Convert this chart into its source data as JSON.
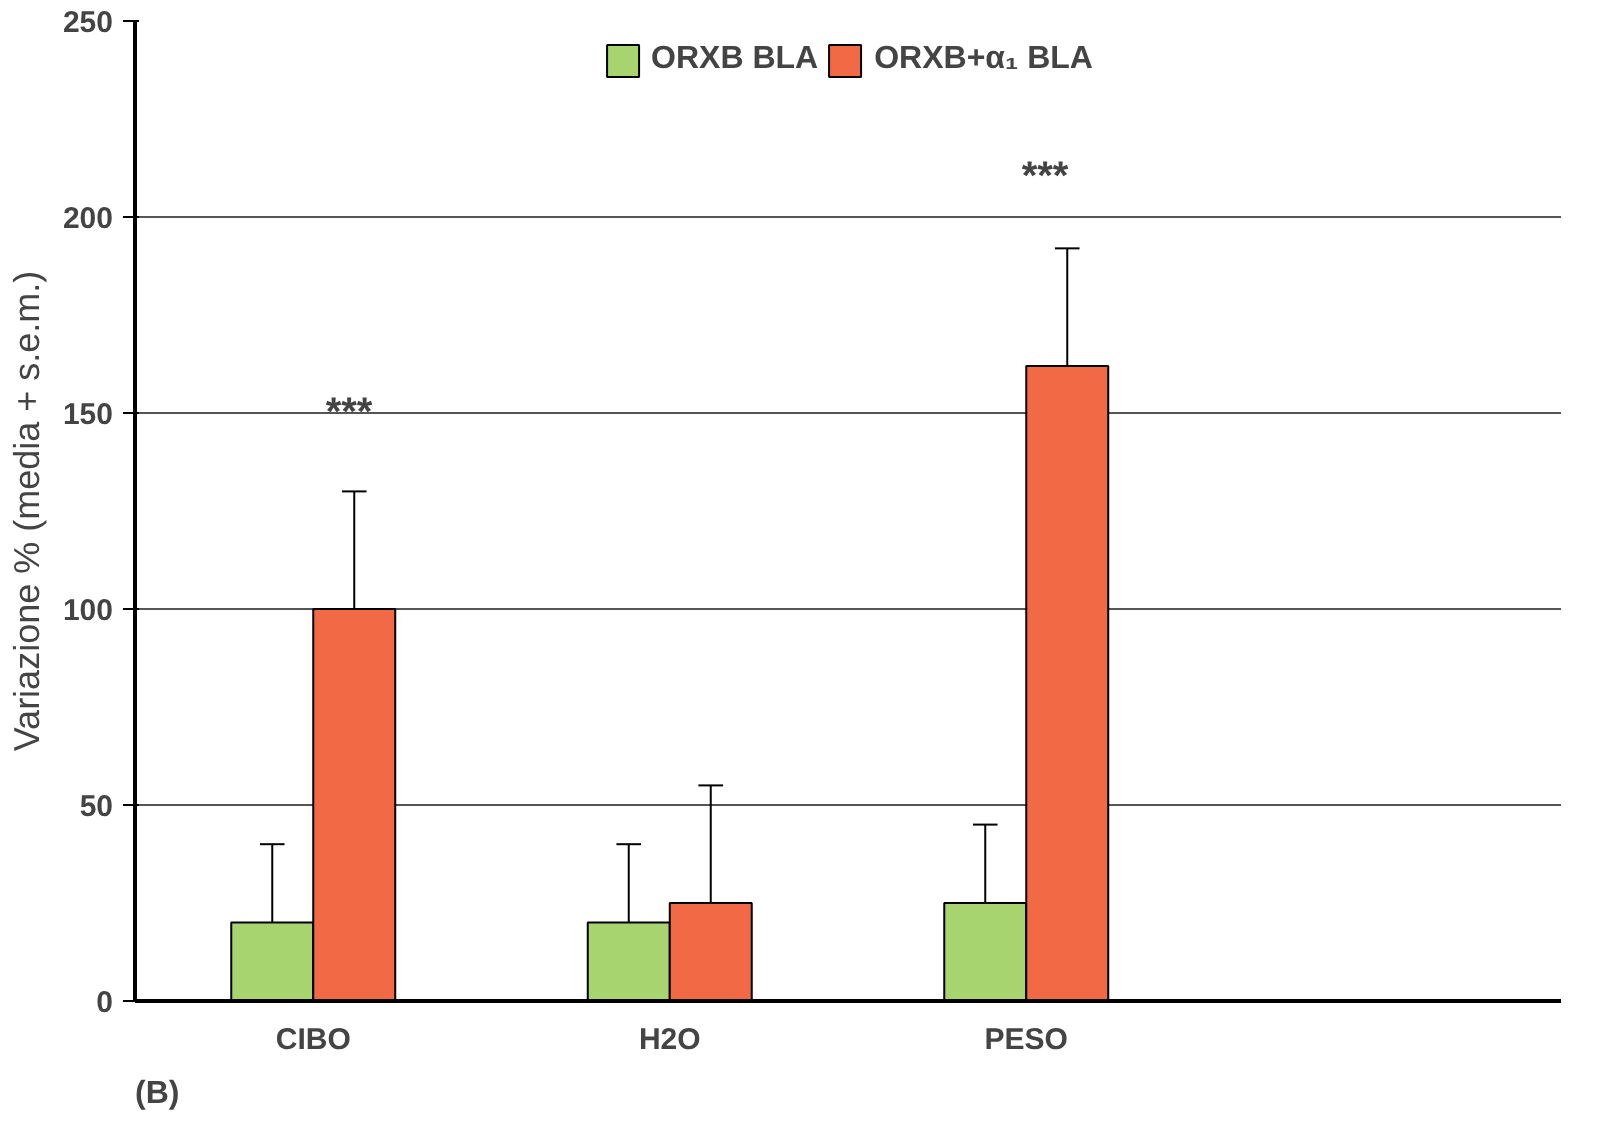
{
  "chart_data": {
    "type": "bar",
    "ylabel": "Variazione % (media + s.e.m.)",
    "categories": [
      "CIBO",
      "H2O",
      "PESO",
      null
    ],
    "series": [
      {
        "name": "ORXB BLA",
        "color": "#a8d46f",
        "values": [
          20,
          20,
          25,
          null
        ],
        "errors": [
          [
            20,
            40
          ],
          [
            20,
            40
          ],
          [
            25,
            45
          ],
          null
        ]
      },
      {
        "name": "ORXB+α₁ BLA",
        "color": "#f26a45",
        "values": [
          100,
          25,
          162,
          null
        ],
        "errors": [
          [
            100,
            130
          ],
          [
            25,
            55
          ],
          [
            162,
            192
          ],
          null
        ]
      }
    ],
    "ylim": [
      0,
      250
    ],
    "yticks": [
      0,
      50,
      100,
      150,
      200,
      250
    ],
    "grid": "y",
    "legend": "top",
    "annotations": [
      "***",
      "***",
      "(B)"
    ]
  }
}
